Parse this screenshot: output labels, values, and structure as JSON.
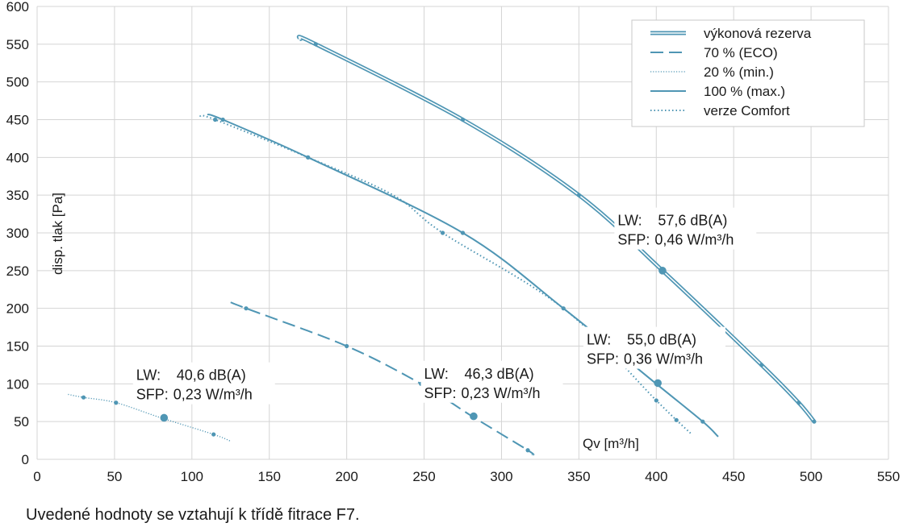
{
  "chart_data": {
    "type": "line",
    "xlabel": "Qv [m³/h]",
    "ylabel": "disp. tlak [Pa]",
    "xlim": [
      0,
      550
    ],
    "ylim": [
      0,
      600
    ],
    "xticks": [
      0,
      50,
      100,
      150,
      200,
      250,
      300,
      350,
      400,
      450,
      500,
      550
    ],
    "yticks": [
      0,
      50,
      100,
      150,
      200,
      250,
      300,
      350,
      400,
      450,
      500,
      550,
      600
    ],
    "grid": true,
    "legend_position": "top-right",
    "colors": {
      "line": "#4f96b4",
      "grid": "#d4d4d4"
    },
    "legend": [
      {
        "label": "výkonová rezerva",
        "style": "double"
      },
      {
        "label": "70 % (ECO)",
        "style": "dashed"
      },
      {
        "label": "20 % (min.)",
        "style": "fine-dotted"
      },
      {
        "label": "100 % (max.)",
        "style": "solid"
      },
      {
        "label": "verze Comfort",
        "style": "dotted"
      }
    ],
    "series": [
      {
        "style": "double",
        "x": [
          170,
          180,
          275,
          350,
          404,
          468,
          492,
          502
        ],
        "y": [
          557,
          550,
          450,
          350,
          250,
          125,
          75,
          50
        ],
        "markers": [
          180,
          275,
          350,
          468,
          492,
          502
        ]
      },
      {
        "style": "solid",
        "x": [
          110,
          120,
          175,
          275,
          340,
          400,
          430,
          440
        ],
        "y": [
          457,
          450,
          400,
          300,
          200,
          100,
          50,
          30
        ],
        "markers": [
          120,
          175,
          275,
          340,
          430
        ]
      },
      {
        "style": "dotted",
        "x": [
          105,
          115,
          175,
          230,
          262,
          340,
          400,
          413,
          423
        ],
        "y": [
          455,
          450,
          400,
          350,
          300,
          200,
          78,
          52,
          33
        ],
        "markers": [
          115,
          175,
          262,
          400,
          413
        ]
      },
      {
        "style": "dashed",
        "x": [
          125,
          135,
          200,
          248,
          281,
          317,
          320
        ],
        "y": [
          208,
          200,
          150,
          100,
          57,
          12,
          6
        ],
        "markers": [
          135,
          200,
          248,
          317
        ]
      },
      {
        "style": "fine-dotted",
        "x": [
          20,
          30,
          51,
          80,
          114,
          125
        ],
        "y": [
          86,
          82,
          75,
          55,
          33,
          24
        ],
        "markers": [
          30,
          51,
          114
        ]
      }
    ],
    "operating_points": [
      {
        "x": 404,
        "y": 250
      },
      {
        "x": 401,
        "y": 101
      },
      {
        "x": 282,
        "y": 57
      },
      {
        "x": 82,
        "y": 55
      }
    ],
    "annotations": [
      {
        "lw_label": "LW:",
        "lw_value": "57,6 dB(A)",
        "sfp_label": "SFP:",
        "sfp_value": "0,46 W/m³/h",
        "x": 375,
        "y": 310
      },
      {
        "lw_label": "LW:",
        "lw_value": "55,0 dB(A)",
        "sfp_label": "SFP:",
        "sfp_value": "0,36 W/m³/h",
        "x": 355,
        "y": 152
      },
      {
        "lw_label": "LW:",
        "lw_value": "46,3 dB(A)",
        "sfp_label": "SFP:",
        "sfp_value": "0,23 W/m³/h",
        "x": 250,
        "y": 107
      },
      {
        "lw_label": "LW:",
        "lw_value": "40,6 dB(A)",
        "sfp_label": "SFP:",
        "sfp_value": "0,23 W/m³/h",
        "x": 64,
        "y": 105
      }
    ]
  },
  "footnote": "Uvedené hodnoty se vztahují k třídě fitrace F7."
}
